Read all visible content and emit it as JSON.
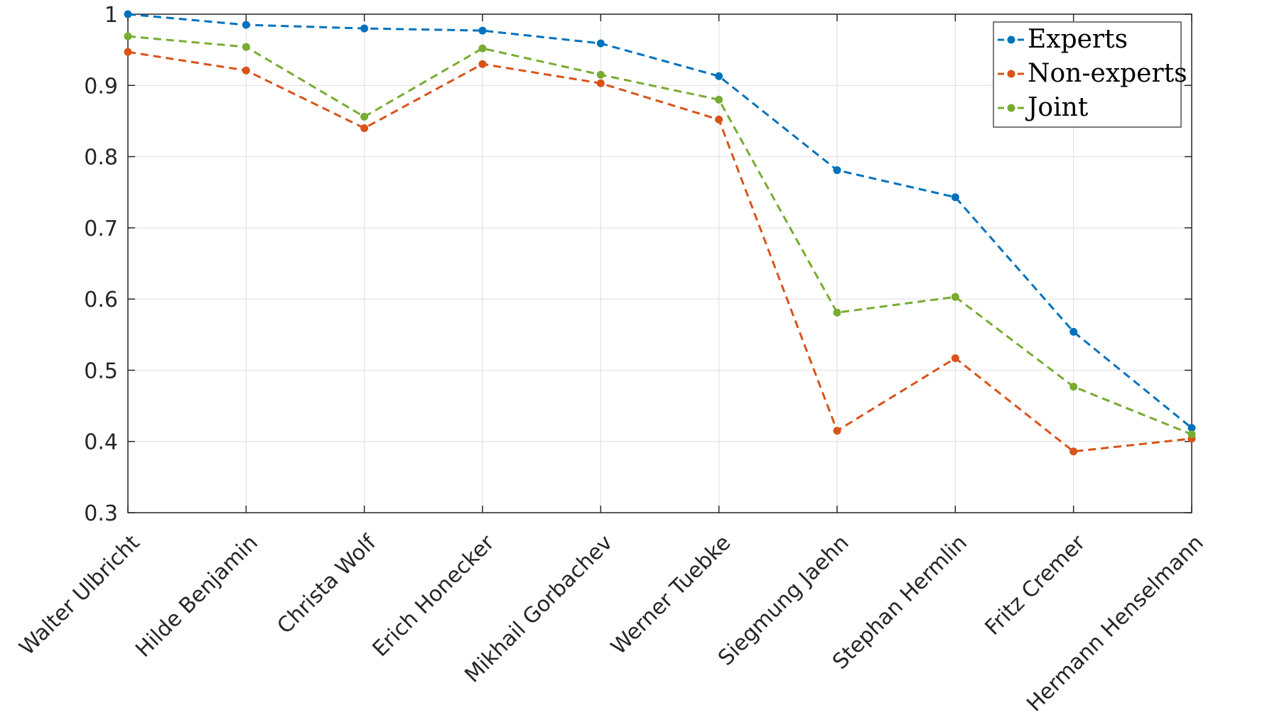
{
  "chart_data": {
    "type": "line",
    "title": "",
    "xlabel": "",
    "ylabel": "",
    "ylim": [
      0.3,
      1.0
    ],
    "yticks": [
      "0.3",
      "0.4",
      "0.5",
      "0.6",
      "0.7",
      "0.8",
      "0.9",
      "1"
    ],
    "grid": true,
    "legend_position": "top-right",
    "categories": [
      "Walter Ulbricht",
      "Hilde Benjamin",
      "Christa Wolf",
      "Erich Honecker",
      "Mikhail Gorbachev",
      "Werner Tuebke",
      "Siegmung Jaehn",
      "Stephan Hermlin",
      "Fritz Cremer",
      "Hermann Henselmann"
    ],
    "series": [
      {
        "name": "Experts",
        "color": "#0072BD",
        "values": [
          1.0,
          0.985,
          0.98,
          0.977,
          0.959,
          0.913,
          0.781,
          0.743,
          0.554,
          0.419
        ]
      },
      {
        "name": "Non-experts",
        "color": "#D95319",
        "values": [
          0.947,
          0.921,
          0.84,
          0.93,
          0.903,
          0.852,
          0.415,
          0.517,
          0.386,
          0.404
        ]
      },
      {
        "name": "Joint",
        "color": "#77AC30",
        "values": [
          0.969,
          0.954,
          0.856,
          0.952,
          0.915,
          0.88,
          0.581,
          0.603,
          0.477,
          0.41
        ]
      }
    ]
  }
}
